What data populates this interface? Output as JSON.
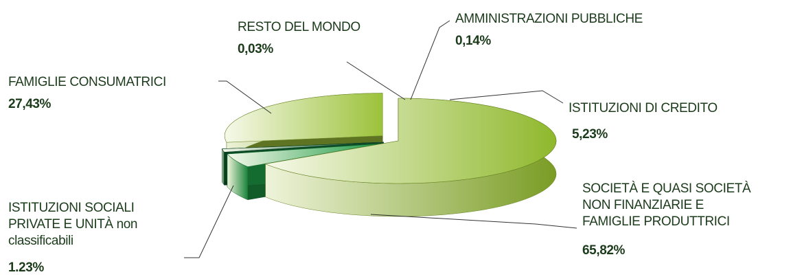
{
  "chart_data": {
    "type": "pie",
    "categories": [
      [
        "SOCIETÀ E QUASI SOCIETÀ",
        "NON FINANZIARIE E",
        "FAMIGLIE PRODUTTRICI"
      ],
      [
        "ISTITUZIONI DI CREDITO"
      ],
      [
        "AMMINISTRAZIONI PUBBLICHE"
      ],
      [
        "RESTO DEL MONDO"
      ],
      [
        "ISTITUZIONI SOCIALI",
        "PRIVATE E UNITÀ non",
        "classificabili"
      ],
      [
        "FAMIGLIE CONSUMATRICI"
      ]
    ],
    "values": [
      65.82,
      5.23,
      0.14,
      0.03,
      1.23,
      27.43
    ],
    "value_labels": [
      "65,82%",
      "5,23%",
      "0,14%",
      "0,03%",
      "1.23%",
      "27,43%"
    ],
    "colors": [
      "#8fb82c",
      "#1e9a45",
      "#0f6b35",
      "#6e6e8e",
      "#0c5a2c",
      "#9cc23a"
    ]
  }
}
